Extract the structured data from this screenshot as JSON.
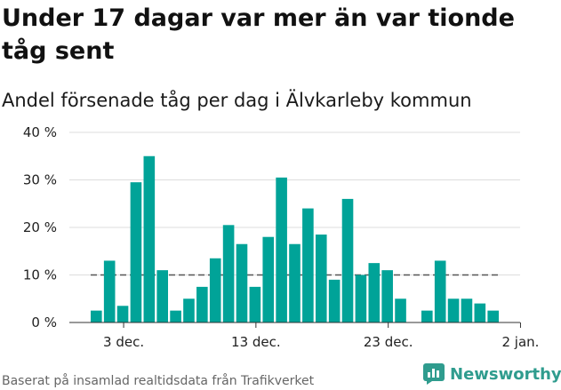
{
  "title": "Under 17 dagar var mer än var tionde tåg sent",
  "subtitle": "Andel försenade tåg per dag i Älvkarleby kommun",
  "footer": "Baserat på insamlad realtidsdata från Trafikverket",
  "brand": "Newsworthy",
  "colors": {
    "bar": "#00a398",
    "reference": "#555555",
    "grid": "#dddddd",
    "brand": "#2f9c8e"
  },
  "chart_data": {
    "type": "bar",
    "title": "Under 17 dagar var mer än var tionde tåg sent",
    "subtitle": "Andel försenade tåg per dag i Älvkarleby kommun",
    "xlabel": "",
    "ylabel": "",
    "ylim": [
      0,
      40
    ],
    "yticks": [
      "0 %",
      "10 %",
      "20 %",
      "30 %",
      "40 %"
    ],
    "ytick_values": [
      0,
      10,
      20,
      30,
      40
    ],
    "xticks": [
      {
        "label": "3 dec.",
        "index": 2
      },
      {
        "label": "13 dec.",
        "index": 12
      },
      {
        "label": "23 dec.",
        "index": 22
      },
      {
        "label": "2 jan.",
        "index": 32
      }
    ],
    "values": [
      2.5,
      13,
      3.5,
      29.5,
      35,
      11,
      2.5,
      5,
      7.5,
      13.5,
      20.5,
      16.5,
      7.5,
      18,
      30.5,
      16.5,
      24,
      18.5,
      9,
      26,
      10,
      12.5,
      11,
      5,
      0,
      2.5,
      13,
      5,
      5,
      4,
      2.5
    ],
    "reference_line": 10,
    "grid": true
  }
}
